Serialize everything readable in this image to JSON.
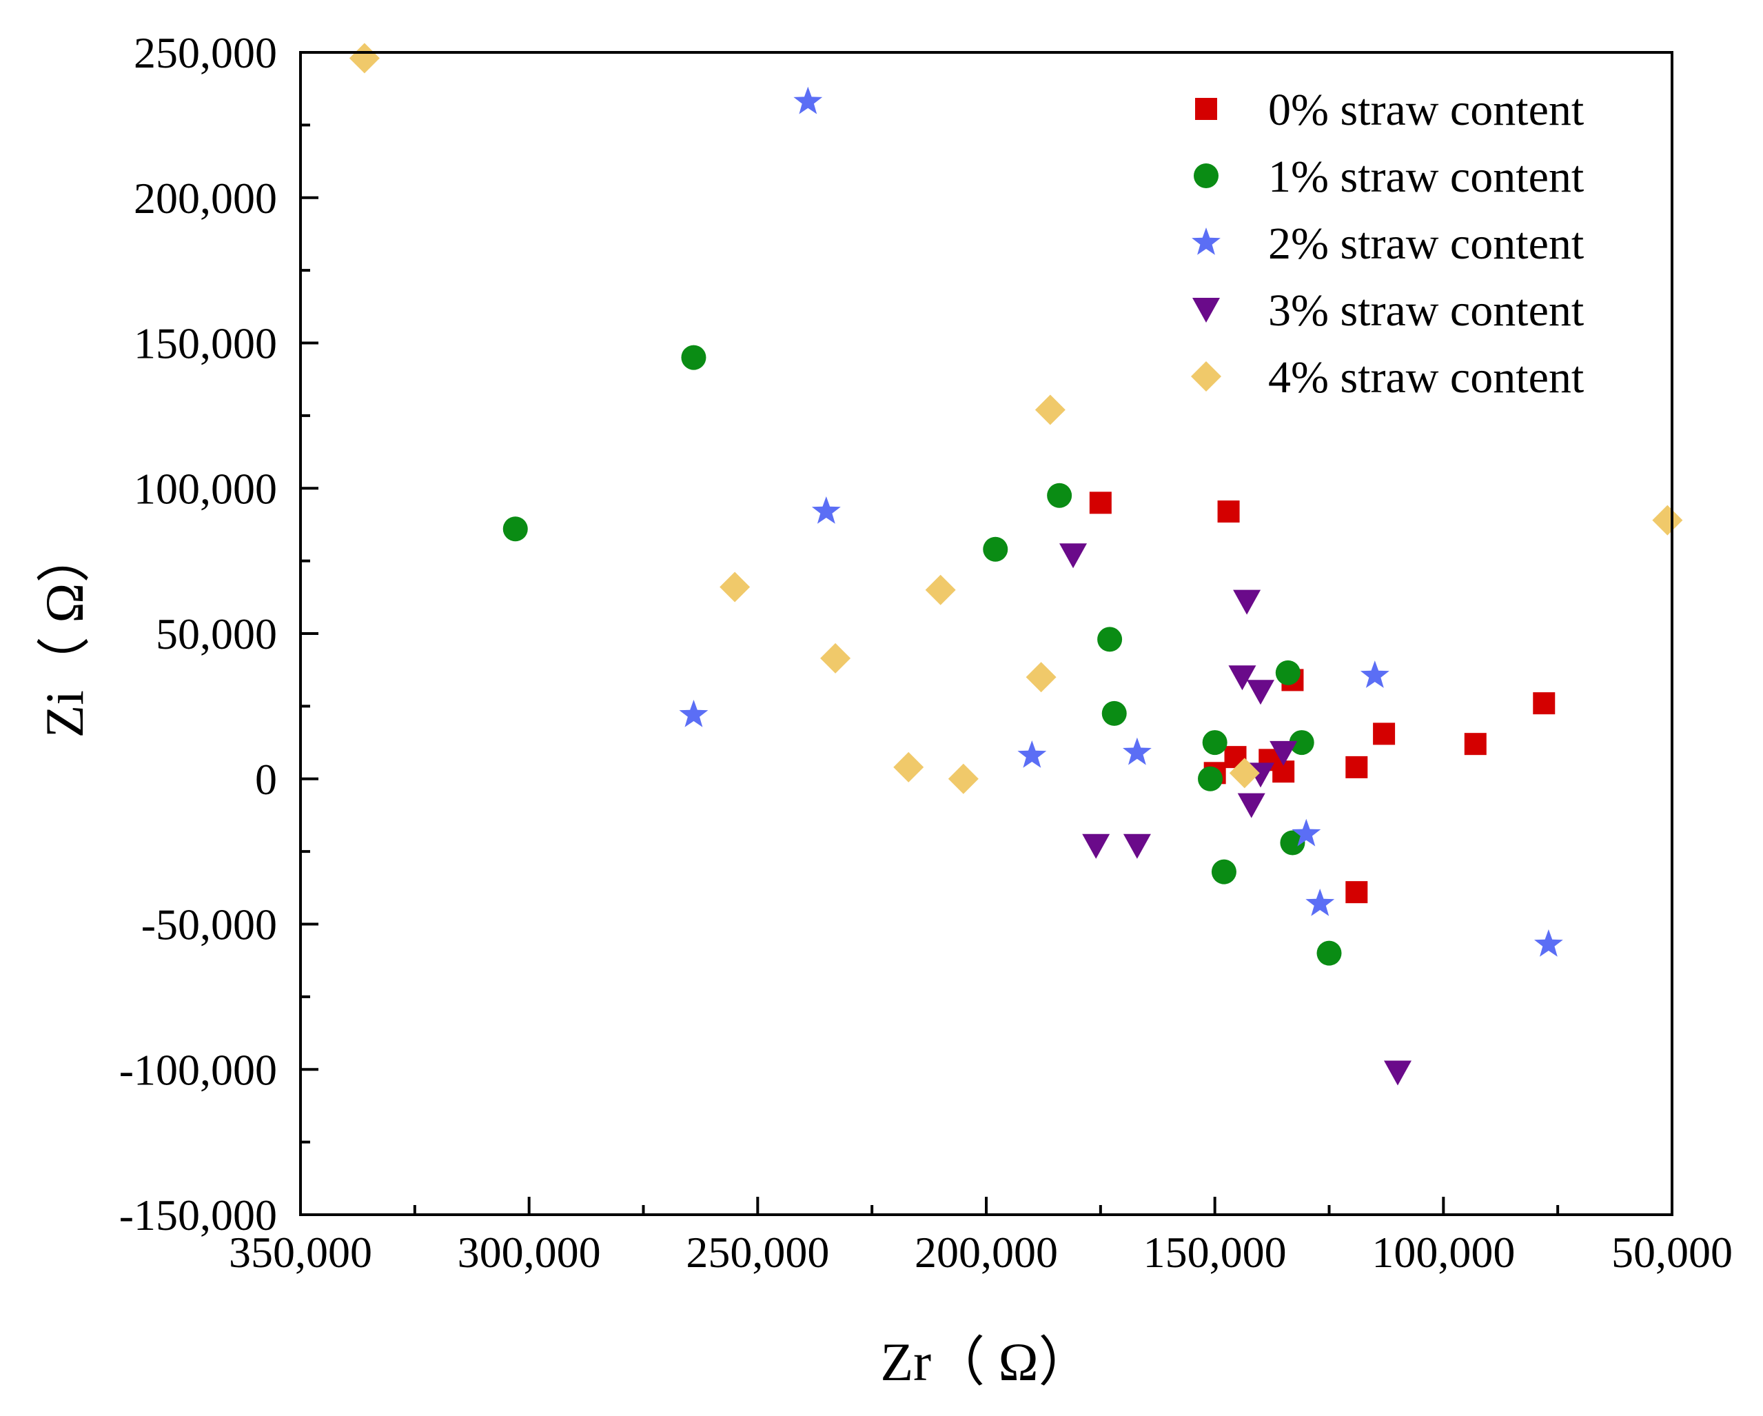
{
  "chart_data": {
    "type": "scatter",
    "title": "",
    "xlabel": "Zr（ Ω）",
    "ylabel": "Zi（ Ω）",
    "x_reversed": true,
    "xlim": [
      50000,
      350000
    ],
    "ylim": [
      -150000,
      250000
    ],
    "x_ticks": [
      350000,
      300000,
      250000,
      200000,
      150000,
      100000,
      50000
    ],
    "x_tick_labels": [
      "350,000",
      "300,000",
      "250,000",
      "200,000",
      "150,000",
      "100,000",
      "50,000"
    ],
    "y_ticks": [
      250000,
      200000,
      150000,
      100000,
      50000,
      0,
      -50000,
      -100000,
      -150000
    ],
    "y_tick_labels": [
      "250,000",
      "200,000",
      "150,000",
      "100,000",
      "50,000",
      "0",
      "-50,000",
      "-100,000",
      "-150,000"
    ],
    "grid": false,
    "legend_position": "top-right",
    "series": [
      {
        "name": "0% straw content",
        "marker": "square",
        "color": "#d40000",
        "points": [
          [
            175000,
            95000
          ],
          [
            147000,
            92000
          ],
          [
            133000,
            34000
          ],
          [
            78000,
            26000
          ],
          [
            93000,
            12000
          ],
          [
            113000,
            15500
          ],
          [
            145500,
            7500
          ],
          [
            150000,
            2000
          ],
          [
            138000,
            6500
          ],
          [
            135000,
            2500
          ],
          [
            119000,
            4000
          ],
          [
            119000,
            -39000
          ]
        ]
      },
      {
        "name": "1% straw content",
        "marker": "circle",
        "color": "#0a8c14",
        "points": [
          [
            264000,
            145000
          ],
          [
            303000,
            86000
          ],
          [
            184000,
            97500
          ],
          [
            198000,
            79000
          ],
          [
            173000,
            48000
          ],
          [
            172000,
            22500
          ],
          [
            134000,
            36500
          ],
          [
            150000,
            12500
          ],
          [
            131000,
            12500
          ],
          [
            151000,
            0
          ],
          [
            133000,
            -22000
          ],
          [
            148000,
            -32000
          ],
          [
            125000,
            -60000
          ]
        ]
      },
      {
        "name": "2% straw content",
        "marker": "star",
        "color": "#5b6ef5",
        "points": [
          [
            239000,
            233000
          ],
          [
            235000,
            92000
          ],
          [
            264000,
            22000
          ],
          [
            115000,
            35500
          ],
          [
            190000,
            8000
          ],
          [
            167000,
            9000
          ],
          [
            130000,
            -19000
          ],
          [
            127000,
            -43000
          ],
          [
            77000,
            -57000
          ]
        ]
      },
      {
        "name": "3% straw content",
        "marker": "triangle-down",
        "color": "#6a0a8a",
        "points": [
          [
            181000,
            77000
          ],
          [
            143000,
            61000
          ],
          [
            144000,
            35000
          ],
          [
            140000,
            30000
          ],
          [
            135000,
            9000
          ],
          [
            140000,
            1500
          ],
          [
            142000,
            -9000
          ],
          [
            176000,
            -23000
          ],
          [
            167000,
            -23000
          ],
          [
            110000,
            -101000
          ]
        ]
      },
      {
        "name": "4% straw content",
        "marker": "diamond",
        "color": "#f0c96a",
        "points": [
          [
            336000,
            248000
          ],
          [
            186000,
            127000
          ],
          [
            255000,
            66000
          ],
          [
            210000,
            65000
          ],
          [
            233000,
            41500
          ],
          [
            188000,
            35000
          ],
          [
            217000,
            4000
          ],
          [
            205000,
            0
          ],
          [
            143500,
            2000
          ],
          [
            51000,
            89000
          ]
        ]
      }
    ]
  }
}
